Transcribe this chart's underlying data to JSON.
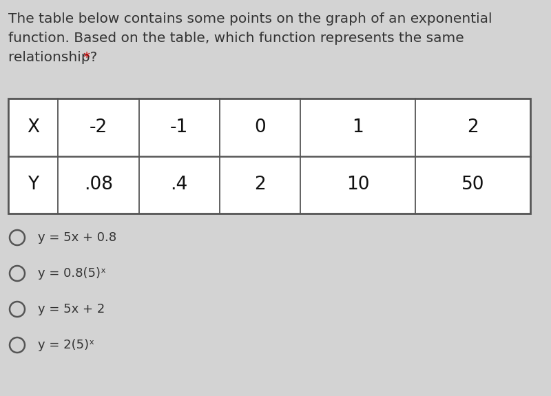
{
  "title_line1": "The table below contains some points on the graph of an exponential",
  "title_line2": "function. Based on the table, which function represents the same",
  "title_line3": "relationship? ",
  "asterisk": "*",
  "asterisk_color": "#cc0000",
  "title_color": "#333333",
  "title_fontsize": 14.5,
  "table_x_headers": [
    "X",
    "-2",
    "-1",
    "0",
    "1",
    "2"
  ],
  "table_y_headers": [
    "Y",
    ".08",
    ".4",
    "2",
    "10",
    "50"
  ],
  "table_fontsize": 19,
  "table_bg": "#ffffff",
  "table_border_color": "#555555",
  "options": [
    "y = 5x + 0.8",
    "y = 0.8(5)ˣ",
    "y = 5x + 2",
    "y = 2(5)ˣ"
  ],
  "options_fontsize": 13,
  "options_color": "#333333",
  "bg_color": "#d3d3d3",
  "circle_color": "#555555"
}
